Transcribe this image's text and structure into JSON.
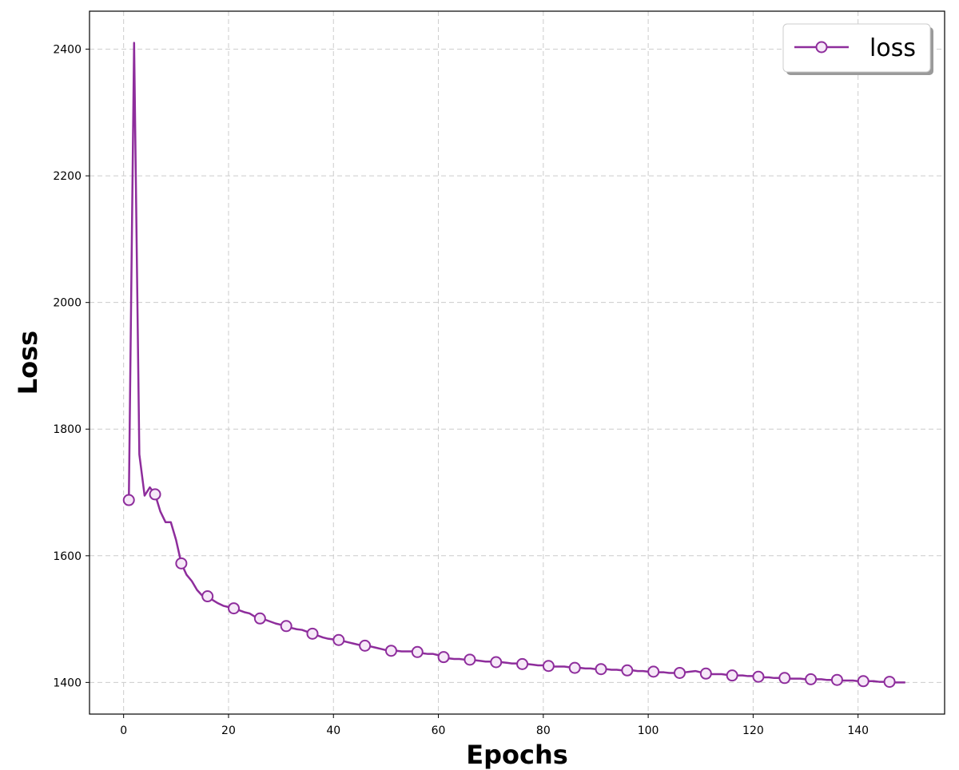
{
  "chart_data": {
    "type": "line",
    "title": "",
    "xlabel": "Epochs",
    "ylabel": "Loss",
    "xlim": [
      -6.5,
      156.5
    ],
    "ylim": [
      1350,
      2460
    ],
    "xticks": [
      0,
      20,
      40,
      60,
      80,
      100,
      120,
      140
    ],
    "yticks": [
      1400,
      1600,
      1800,
      2000,
      2200,
      2400
    ],
    "grid": true,
    "legend_position": "top-right",
    "series": [
      {
        "name": "loss",
        "color": "#8e2d9c",
        "marker": "circle",
        "marker_every": 5,
        "marker_start": 1,
        "x": [
          1,
          2,
          3,
          4,
          5,
          6,
          7,
          8,
          9,
          10,
          11,
          12,
          13,
          14,
          15,
          16,
          17,
          18,
          19,
          20,
          21,
          22,
          23,
          24,
          25,
          26,
          27,
          28,
          29,
          30,
          31,
          32,
          33,
          34,
          35,
          36,
          37,
          38,
          39,
          40,
          41,
          42,
          43,
          44,
          45,
          46,
          47,
          48,
          49,
          50,
          51,
          52,
          53,
          54,
          55,
          56,
          57,
          58,
          59,
          60,
          61,
          62,
          63,
          64,
          65,
          66,
          67,
          68,
          69,
          70,
          71,
          72,
          73,
          74,
          75,
          76,
          77,
          78,
          79,
          80,
          81,
          82,
          83,
          84,
          85,
          86,
          87,
          88,
          89,
          90,
          91,
          92,
          93,
          94,
          95,
          96,
          97,
          98,
          99,
          100,
          101,
          102,
          103,
          104,
          105,
          106,
          107,
          108,
          109,
          110,
          111,
          112,
          113,
          114,
          115,
          116,
          117,
          118,
          119,
          120,
          121,
          122,
          123,
          124,
          125,
          126,
          127,
          128,
          129,
          130,
          131,
          132,
          133,
          134,
          135,
          136,
          137,
          138,
          139,
          140,
          141,
          142,
          143,
          144,
          145,
          146,
          147,
          148,
          149
        ],
        "y": [
          1688,
          2410,
          1760,
          1695,
          1708,
          1697,
          1670,
          1653,
          1653,
          1625,
          1588,
          1570,
          1560,
          1546,
          1537,
          1536,
          1530,
          1525,
          1521,
          1519,
          1517,
          1514,
          1511,
          1509,
          1504,
          1501,
          1499,
          1496,
          1493,
          1491,
          1489,
          1486,
          1484,
          1483,
          1480,
          1477,
          1474,
          1471,
          1469,
          1468,
          1467,
          1465,
          1463,
          1461,
          1459,
          1458,
          1457,
          1455,
          1453,
          1451,
          1450,
          1450,
          1449,
          1449,
          1449,
          1448,
          1446,
          1445,
          1445,
          1443,
          1440,
          1438,
          1437,
          1437,
          1436,
          1436,
          1435,
          1434,
          1433,
          1433,
          1432,
          1432,
          1431,
          1430,
          1430,
          1429,
          1429,
          1428,
          1427,
          1427,
          1426,
          1425,
          1425,
          1425,
          1424,
          1423,
          1423,
          1422,
          1422,
          1421,
          1421,
          1421,
          1420,
          1420,
          1419,
          1419,
          1419,
          1418,
          1418,
          1417,
          1417,
          1416,
          1416,
          1415,
          1415,
          1415,
          1416,
          1417,
          1418,
          1416,
          1414,
          1413,
          1413,
          1413,
          1412,
          1411,
          1411,
          1411,
          1410,
          1410,
          1409,
          1408,
          1408,
          1407,
          1407,
          1407,
          1406,
          1406,
          1406,
          1405,
          1405,
          1405,
          1405,
          1404,
          1404,
          1404,
          1403,
          1403,
          1403,
          1402,
          1402,
          1402,
          1402,
          1401,
          1401,
          1401,
          1400,
          1400,
          1400
        ]
      }
    ]
  }
}
